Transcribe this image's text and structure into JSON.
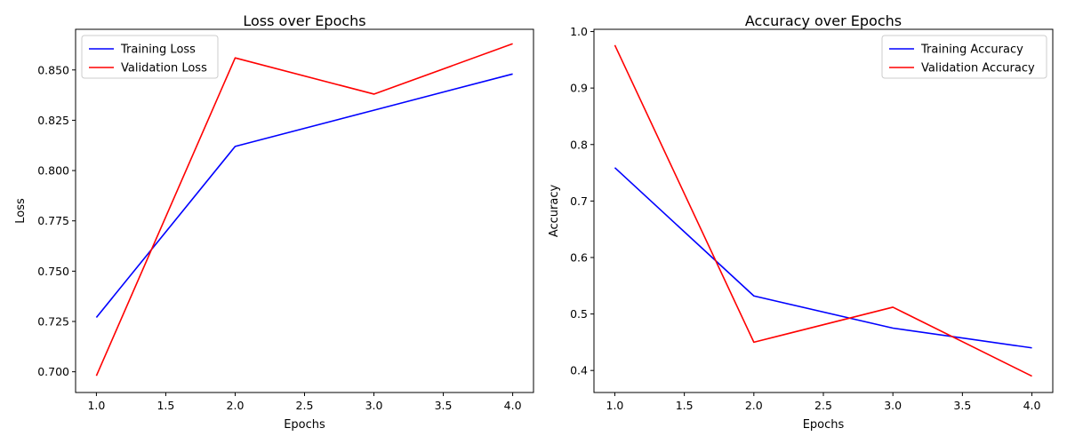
{
  "chart_data": [
    {
      "type": "line",
      "title": "Loss over Epochs",
      "xlabel": "Epochs",
      "ylabel": "Loss",
      "x": [
        1.0,
        2.0,
        3.0,
        4.0
      ],
      "xlim": [
        0.85,
        4.15
      ],
      "ylim": [
        0.6897,
        0.6702
      ],
      "xticks": [
        1.0,
        1.5,
        2.0,
        2.5,
        3.0,
        3.5,
        4.0
      ],
      "xtick_labels": [
        "1.0",
        "1.5",
        "2.0",
        "2.5",
        "3.0",
        "3.5",
        "4.0"
      ],
      "yticks": [
        0.7,
        0.725,
        0.75,
        0.775,
        0.8,
        0.825,
        0.85
      ],
      "ytick_labels": [
        "0.700",
        "0.725",
        "0.750",
        "0.775",
        "0.800",
        "0.825",
        "0.850"
      ],
      "legend_position": "upper left",
      "grid": false,
      "series": [
        {
          "name": "Training Loss",
          "color": "#0000ff",
          "values": [
            0.727,
            0.812,
            0.83,
            0.848
          ]
        },
        {
          "name": "Validation Loss",
          "color": "#ff0000",
          "values": [
            0.698,
            0.856,
            0.838,
            0.863
          ]
        }
      ]
    },
    {
      "type": "line",
      "title": "Accuracy over Epochs",
      "xlabel": "Epochs",
      "ylabel": "Accuracy",
      "x": [
        1.0,
        2.0,
        3.0,
        4.0
      ],
      "xlim": [
        0.85,
        4.15
      ],
      "ylim": [
        0.361,
        1.004
      ],
      "xticks": [
        1.0,
        1.5,
        2.0,
        2.5,
        3.0,
        3.5,
        4.0
      ],
      "xtick_labels": [
        "1.0",
        "1.5",
        "2.0",
        "2.5",
        "3.0",
        "3.5",
        "4.0"
      ],
      "yticks": [
        0.4,
        0.5,
        0.6,
        0.7,
        0.8,
        0.9,
        1.0
      ],
      "ytick_labels": [
        "0.4",
        "0.5",
        "0.6",
        "0.7",
        "0.8",
        "0.9",
        "1.0"
      ],
      "legend_position": "upper right",
      "grid": false,
      "series": [
        {
          "name": "Training Accuracy",
          "color": "#0000ff",
          "values": [
            0.759,
            0.532,
            0.475,
            0.44
          ]
        },
        {
          "name": "Validation Accuracy",
          "color": "#ff0000",
          "values": [
            0.976,
            0.45,
            0.512,
            0.39
          ]
        }
      ]
    }
  ]
}
